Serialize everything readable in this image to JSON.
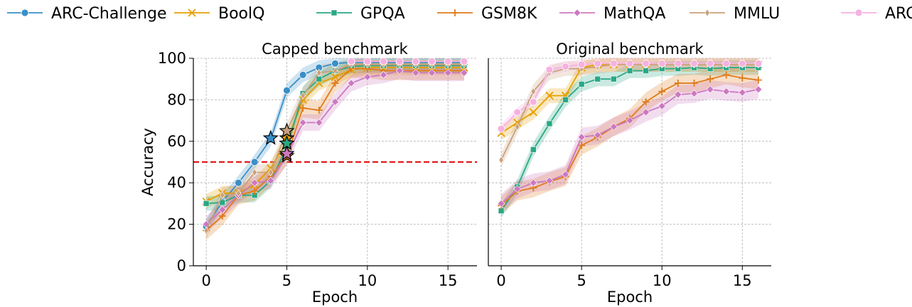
{
  "legend": {
    "position": "top",
    "entries": [
      {
        "name": "ARC-Challenge",
        "color": "#3a8fc7",
        "marker": "circle"
      },
      {
        "name": "BoolQ",
        "color": "#e69f00",
        "marker": "x"
      },
      {
        "name": "GPQA",
        "color": "#2aa785",
        "marker": "square"
      },
      {
        "name": "GSM8K",
        "color": "#e07b1c",
        "marker": "plus"
      },
      {
        "name": "MathQA",
        "color": "#cc79c0",
        "marker": "diamond"
      },
      {
        "name": "MMLU",
        "color": "#c9a07a",
        "marker": "thin-diamond"
      },
      {
        "name": "ARC",
        "color": "#f6b1e0",
        "marker": "circle"
      }
    ]
  },
  "chart_data": [
    {
      "type": "line",
      "title": "Capped benchmark",
      "xlabel": "Epoch",
      "ylabel": "Accuracy",
      "xlim": [
        -0.8,
        16.8
      ],
      "ylim": [
        0,
        100
      ],
      "xticks": [
        0,
        5,
        10,
        15
      ],
      "yticks": [
        0,
        20,
        40,
        60,
        80,
        100
      ],
      "grid": true,
      "reference_line": {
        "y": 50,
        "color": "#e31a1c",
        "style": "dashed"
      },
      "x": [
        0,
        1,
        2,
        3,
        4,
        5,
        6,
        7,
        8,
        9,
        10,
        11,
        12,
        13,
        14,
        15,
        16
      ],
      "series": [
        {
          "name": "ARC-Challenge",
          "values": [
            19,
            31,
            40,
            50,
            61,
            84.5,
            92,
            95.5,
            97.5,
            98,
            98,
            98,
            98,
            98,
            98,
            98,
            98
          ],
          "band": 3.5
        },
        {
          "name": "BoolQ",
          "values": [
            31,
            35,
            35,
            39,
            47,
            60,
            80,
            88,
            91,
            94.5,
            95.5,
            95.5,
            95.5,
            95.5,
            95.5,
            95.5,
            95.5
          ],
          "band": 3.5
        },
        {
          "name": "GPQA",
          "values": [
            30,
            30.5,
            34,
            34,
            41,
            57,
            83,
            90,
            94,
            96,
            96.5,
            96.5,
            96.5,
            96.5,
            96.5,
            96.5,
            96.5
          ],
          "band": 3.5
        },
        {
          "name": "GSM8K",
          "values": [
            17,
            24,
            34,
            36,
            43,
            53,
            76,
            75,
            88,
            95,
            95,
            94,
            94,
            94,
            94,
            94,
            94
          ],
          "band": 4.5
        },
        {
          "name": "MathQA",
          "values": [
            20,
            27,
            34,
            40,
            41,
            53,
            69,
            69,
            79,
            88,
            91,
            92,
            94,
            93,
            93,
            93,
            93
          ],
          "band": 4
        },
        {
          "name": "MMLU",
          "values": [
            17,
            34,
            35,
            45,
            45,
            65,
            82,
            93,
            94,
            97,
            97,
            97,
            97,
            97,
            97,
            97,
            97
          ],
          "band": 4
        },
        {
          "name": "ARC",
          "values": [
            null,
            null,
            null,
            null,
            null,
            null,
            null,
            null,
            null,
            98.5,
            98.5,
            98.5,
            98.5,
            98.5,
            98.5,
            98.5,
            98.5
          ],
          "band": 1
        }
      ],
      "stars": [
        {
          "series": "ARC-Challenge",
          "x": 4,
          "y": 61.5
        },
        {
          "series": "BoolQ",
          "x": 5,
          "y": 61.5
        },
        {
          "series": "GPQA",
          "x": 5,
          "y": 59
        },
        {
          "series": "GSM8K",
          "x": 5,
          "y": 53
        },
        {
          "series": "MathQA",
          "x": 5,
          "y": 54
        },
        {
          "series": "MMLU",
          "x": 5,
          "y": 65
        }
      ]
    },
    {
      "type": "line",
      "title": "Original benchmark",
      "xlabel": "Epoch",
      "ylabel": "",
      "xlim": [
        -0.8,
        16.8
      ],
      "ylim": [
        0,
        100
      ],
      "xticks": [
        0,
        5,
        10,
        15
      ],
      "yticks": [
        0,
        20,
        40,
        60,
        80,
        100
      ],
      "grid": true,
      "x": [
        0,
        1,
        2,
        3,
        4,
        5,
        6,
        7,
        8,
        9,
        10,
        11,
        12,
        13,
        14,
        15,
        16
      ],
      "series": [
        {
          "name": "ARC-Challenge",
          "values": [
            null,
            null,
            null,
            null,
            null,
            null,
            null,
            null,
            null,
            null,
            null,
            null,
            null,
            null,
            null,
            null,
            null
          ],
          "band": 0
        },
        {
          "name": "BoolQ",
          "values": [
            64,
            69,
            74,
            82,
            82,
            95.5,
            97,
            97,
            97,
            97,
            97,
            97,
            97,
            97,
            97,
            97,
            97
          ],
          "band": 3.5
        },
        {
          "name": "GPQA",
          "values": [
            26.5,
            38,
            56,
            68.5,
            80,
            87.5,
            90,
            90,
            94,
            94,
            95,
            95,
            95.5,
            95,
            95.5,
            95.5,
            95.5
          ],
          "band": 3.5
        },
        {
          "name": "GSM8K",
          "values": [
            29,
            36,
            37.5,
            40.5,
            43,
            58,
            62,
            67,
            71,
            79,
            84,
            88,
            88,
            90,
            92,
            90.5,
            89.5
          ],
          "band": 4.5
        },
        {
          "name": "MathQA",
          "values": [
            30,
            37,
            40,
            41,
            44,
            62,
            63,
            67,
            70,
            74,
            77,
            82.5,
            83,
            85,
            84,
            83.5,
            85
          ],
          "band": 4.5
        },
        {
          "name": "MMLU",
          "values": [
            51,
            67,
            84,
            93,
            95,
            95,
            96,
            97,
            97,
            97,
            97,
            97,
            97,
            97,
            97,
            97,
            97
          ],
          "band": 3.5
        },
        {
          "name": "ARC",
          "values": [
            66,
            74,
            79,
            94.5,
            96,
            97,
            97.5,
            97.5,
            97.5,
            97.5,
            97.5,
            97.5,
            97.5,
            97.5,
            97.5,
            97.5,
            97.5
          ],
          "band": 2.5
        }
      ]
    }
  ]
}
